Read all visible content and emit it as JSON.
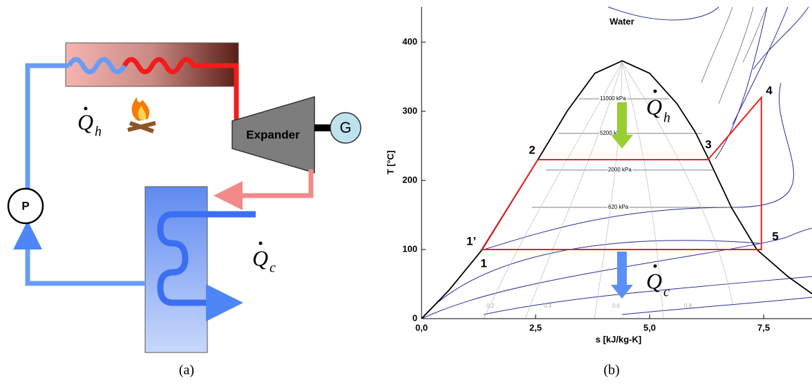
{
  "diagram": {
    "expander": "Expander",
    "generator": "G",
    "pump": "P",
    "heat_in": {
      "symbol": "Q",
      "subscript": "h"
    },
    "heat_out": {
      "symbol": "Q",
      "subscript": "c"
    },
    "caption": "(a)"
  },
  "chart_data": {
    "type": "line",
    "title": "Water",
    "y_label": "T [°C]",
    "x_label": "s [kJ/kg-K]",
    "xlim": [
      0,
      8.56
    ],
    "ylim": [
      0,
      451
    ],
    "xticks": [
      {
        "value": 0,
        "label": "0,0"
      },
      {
        "value": 2.5,
        "label": "2,5"
      },
      {
        "value": 5,
        "label": "5,0"
      },
      {
        "value": 7.5,
        "label": "7,5"
      }
    ],
    "yticks": [
      0,
      100,
      200,
      300,
      400
    ],
    "series": [
      {
        "color": "#000000",
        "x": [
          0,
          0.6,
          1.32,
          2.55,
          3.2,
          3.8,
          4.4,
          5.0,
          5.6,
          6.0,
          6.3,
          6.8,
          7.35,
          8.03,
          8.56
        ],
        "values": [
          0,
          41,
          99,
          230,
          301,
          355,
          373,
          355,
          311,
          270,
          230,
          160,
          100,
          61,
          36
        ]
      },
      {
        "color": "#e8201c",
        "x": [
          1.32,
          2.55,
          6.28,
          7.45,
          7.45,
          1.32
        ],
        "values": [
          100,
          230,
          230,
          320,
          100,
          100
        ]
      }
    ],
    "isobar_labels": [
      "11000 kPa",
      "5200 kPa",
      "2000 kPa",
      "620 kPa"
    ],
    "quality_labels": [
      "0,2",
      "0,4",
      "0,6",
      "0,8"
    ],
    "point_labels": [
      "1",
      "1’",
      "2",
      "3",
      "4",
      "5"
    ],
    "heat_in": {
      "symbol": "Q",
      "subscript": "h"
    },
    "heat_out": {
      "symbol": "Q",
      "subscript": "c"
    },
    "caption": "(b)"
  }
}
